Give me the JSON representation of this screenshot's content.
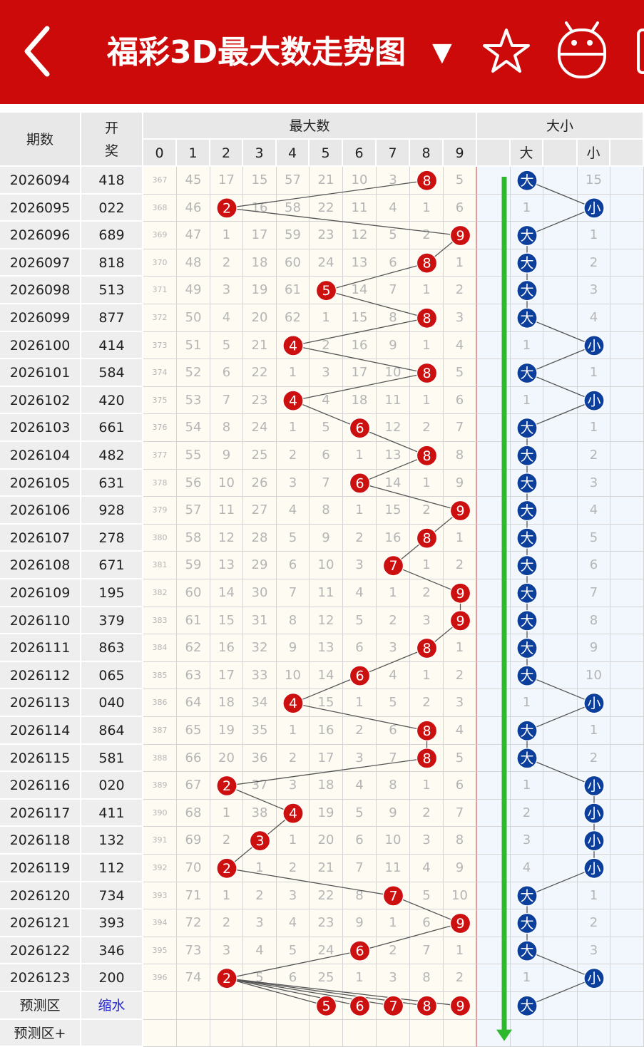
{
  "header": {
    "title": "福彩3D最大数走势图",
    "dropdown_icon": "caret-down-icon",
    "icons": [
      "back-arrow-icon",
      "star-icon",
      "android-robot-icon"
    ]
  },
  "table": {
    "col_period": "期数",
    "col_number": "开奖号码",
    "group_max": "最大数",
    "group_size": "大小",
    "digit_headers": [
      "0",
      "1",
      "2",
      "3",
      "4",
      "5",
      "6",
      "7",
      "8",
      "9"
    ],
    "size_headers": [
      "大",
      "小"
    ],
    "predict_label": "预测区",
    "predict_note": "缩水",
    "predict_plus_label": "预测区+",
    "predict_max_digits": [
      5,
      6,
      7,
      8,
      9
    ],
    "predict_size": "大",
    "colors": {
      "max_ball": "#cc1010",
      "size_ball": "#0c3f9c",
      "arrow": "#2eb82e",
      "header": "#cc0a0a"
    },
    "rows": [
      {
        "period": "2026094",
        "number": "418",
        "max": 8,
        "size": "大",
        "omit": [
          "367",
          "45",
          "17",
          "15",
          "57",
          "21",
          "10",
          "3",
          "",
          "5"
        ],
        "size_omit": [
          "",
          "15"
        ]
      },
      {
        "period": "2026095",
        "number": "022",
        "max": 2,
        "size": "小",
        "omit": [
          "368",
          "46",
          "",
          "16",
          "58",
          "22",
          "11",
          "4",
          "1",
          "6"
        ],
        "size_omit": [
          "1",
          ""
        ]
      },
      {
        "period": "2026096",
        "number": "689",
        "max": 9,
        "size": "大",
        "omit": [
          "369",
          "47",
          "1",
          "17",
          "59",
          "23",
          "12",
          "5",
          "2",
          ""
        ],
        "size_omit": [
          "",
          "1"
        ]
      },
      {
        "period": "2026097",
        "number": "818",
        "max": 8,
        "size": "大",
        "omit": [
          "370",
          "48",
          "2",
          "18",
          "60",
          "24",
          "13",
          "6",
          "",
          "1"
        ],
        "size_omit": [
          "",
          "2"
        ]
      },
      {
        "period": "2026098",
        "number": "513",
        "max": 5,
        "size": "大",
        "omit": [
          "371",
          "49",
          "3",
          "19",
          "61",
          "",
          "14",
          "7",
          "1",
          "2"
        ],
        "size_omit": [
          "",
          "3"
        ]
      },
      {
        "period": "2026099",
        "number": "877",
        "max": 8,
        "size": "大",
        "omit": [
          "372",
          "50",
          "4",
          "20",
          "62",
          "1",
          "15",
          "8",
          "",
          "3"
        ],
        "size_omit": [
          "",
          "4"
        ]
      },
      {
        "period": "2026100",
        "number": "414",
        "max": 4,
        "size": "小",
        "omit": [
          "373",
          "51",
          "5",
          "21",
          "",
          "2",
          "16",
          "9",
          "1",
          "4"
        ],
        "size_omit": [
          "1",
          ""
        ]
      },
      {
        "period": "2026101",
        "number": "584",
        "max": 8,
        "size": "大",
        "omit": [
          "374",
          "52",
          "6",
          "22",
          "1",
          "3",
          "17",
          "10",
          "",
          "5"
        ],
        "size_omit": [
          "",
          "1"
        ]
      },
      {
        "period": "2026102",
        "number": "420",
        "max": 4,
        "size": "小",
        "omit": [
          "375",
          "53",
          "7",
          "23",
          "",
          "4",
          "18",
          "11",
          "1",
          "6"
        ],
        "size_omit": [
          "1",
          ""
        ]
      },
      {
        "period": "2026103",
        "number": "661",
        "max": 6,
        "size": "大",
        "omit": [
          "376",
          "54",
          "8",
          "24",
          "1",
          "5",
          "",
          "12",
          "2",
          "7"
        ],
        "size_omit": [
          "",
          "1"
        ]
      },
      {
        "period": "2026104",
        "number": "482",
        "max": 8,
        "size": "大",
        "omit": [
          "377",
          "55",
          "9",
          "25",
          "2",
          "6",
          "1",
          "13",
          "",
          "8"
        ],
        "size_omit": [
          "",
          "2"
        ]
      },
      {
        "period": "2026105",
        "number": "631",
        "max": 6,
        "size": "大",
        "omit": [
          "378",
          "56",
          "10",
          "26",
          "3",
          "7",
          "",
          "14",
          "1",
          "9"
        ],
        "size_omit": [
          "",
          "3"
        ]
      },
      {
        "period": "2026106",
        "number": "928",
        "max": 9,
        "size": "大",
        "omit": [
          "379",
          "57",
          "11",
          "27",
          "4",
          "8",
          "1",
          "15",
          "2",
          ""
        ],
        "size_omit": [
          "",
          "4"
        ]
      },
      {
        "period": "2026107",
        "number": "278",
        "max": 8,
        "size": "大",
        "omit": [
          "380",
          "58",
          "12",
          "28",
          "5",
          "9",
          "2",
          "16",
          "",
          "1"
        ],
        "size_omit": [
          "",
          "5"
        ]
      },
      {
        "period": "2026108",
        "number": "671",
        "max": 7,
        "size": "大",
        "omit": [
          "381",
          "59",
          "13",
          "29",
          "6",
          "10",
          "3",
          "",
          "1",
          "2"
        ],
        "size_omit": [
          "",
          "6"
        ]
      },
      {
        "period": "2026109",
        "number": "195",
        "max": 9,
        "size": "大",
        "omit": [
          "382",
          "60",
          "14",
          "30",
          "7",
          "11",
          "4",
          "1",
          "2",
          ""
        ],
        "size_omit": [
          "",
          "7"
        ]
      },
      {
        "period": "2026110",
        "number": "379",
        "max": 9,
        "size": "大",
        "omit": [
          "383",
          "61",
          "15",
          "31",
          "8",
          "12",
          "5",
          "2",
          "3",
          ""
        ],
        "size_omit": [
          "",
          "8"
        ]
      },
      {
        "period": "2026111",
        "number": "863",
        "max": 8,
        "size": "大",
        "omit": [
          "384",
          "62",
          "16",
          "32",
          "9",
          "13",
          "6",
          "3",
          "",
          "1"
        ],
        "size_omit": [
          "",
          "9"
        ]
      },
      {
        "period": "2026112",
        "number": "065",
        "max": 6,
        "size": "大",
        "omit": [
          "385",
          "63",
          "17",
          "33",
          "10",
          "14",
          "",
          "4",
          "1",
          "2"
        ],
        "size_omit": [
          "",
          "10"
        ]
      },
      {
        "period": "2026113",
        "number": "040",
        "max": 4,
        "size": "小",
        "omit": [
          "386",
          "64",
          "18",
          "34",
          "",
          "15",
          "1",
          "5",
          "2",
          "3"
        ],
        "size_omit": [
          "1",
          ""
        ]
      },
      {
        "period": "2026114",
        "number": "864",
        "max": 8,
        "size": "大",
        "omit": [
          "387",
          "65",
          "19",
          "35",
          "1",
          "16",
          "2",
          "6",
          "",
          "4"
        ],
        "size_omit": [
          "",
          "1"
        ]
      },
      {
        "period": "2026115",
        "number": "581",
        "max": 8,
        "size": "大",
        "omit": [
          "388",
          "66",
          "20",
          "36",
          "2",
          "17",
          "3",
          "7",
          "",
          "5"
        ],
        "size_omit": [
          "",
          "2"
        ]
      },
      {
        "period": "2026116",
        "number": "020",
        "max": 2,
        "size": "小",
        "omit": [
          "389",
          "67",
          "",
          "37",
          "3",
          "18",
          "4",
          "8",
          "1",
          "6"
        ],
        "size_omit": [
          "1",
          ""
        ]
      },
      {
        "period": "2026117",
        "number": "411",
        "max": 4,
        "size": "小",
        "omit": [
          "390",
          "68",
          "1",
          "38",
          "",
          "19",
          "5",
          "9",
          "2",
          "7"
        ],
        "size_omit": [
          "2",
          ""
        ]
      },
      {
        "period": "2026118",
        "number": "132",
        "max": 3,
        "size": "小",
        "omit": [
          "391",
          "69",
          "2",
          "",
          "1",
          "20",
          "6",
          "10",
          "3",
          "8"
        ],
        "size_omit": [
          "3",
          ""
        ]
      },
      {
        "period": "2026119",
        "number": "112",
        "max": 2,
        "size": "小",
        "omit": [
          "392",
          "70",
          "",
          "1",
          "2",
          "21",
          "7",
          "11",
          "4",
          "9"
        ],
        "size_omit": [
          "4",
          ""
        ]
      },
      {
        "period": "2026120",
        "number": "734",
        "max": 7,
        "size": "大",
        "omit": [
          "393",
          "71",
          "1",
          "2",
          "3",
          "22",
          "8",
          "",
          "5",
          "10"
        ],
        "size_omit": [
          "",
          "1"
        ]
      },
      {
        "period": "2026121",
        "number": "393",
        "max": 9,
        "size": "大",
        "omit": [
          "394",
          "72",
          "2",
          "3",
          "4",
          "23",
          "9",
          "1",
          "6",
          ""
        ],
        "size_omit": [
          "",
          "2"
        ]
      },
      {
        "period": "2026122",
        "number": "346",
        "max": 6,
        "size": "大",
        "omit": [
          "395",
          "73",
          "3",
          "4",
          "5",
          "24",
          "",
          "2",
          "7",
          "1"
        ],
        "size_omit": [
          "",
          "3"
        ]
      },
      {
        "period": "2026123",
        "number": "200",
        "max": 2,
        "size": "小",
        "omit": [
          "396",
          "74",
          "",
          "5",
          "6",
          "25",
          "1",
          "3",
          "8",
          "2"
        ],
        "size_omit": [
          "1",
          ""
        ]
      }
    ]
  }
}
